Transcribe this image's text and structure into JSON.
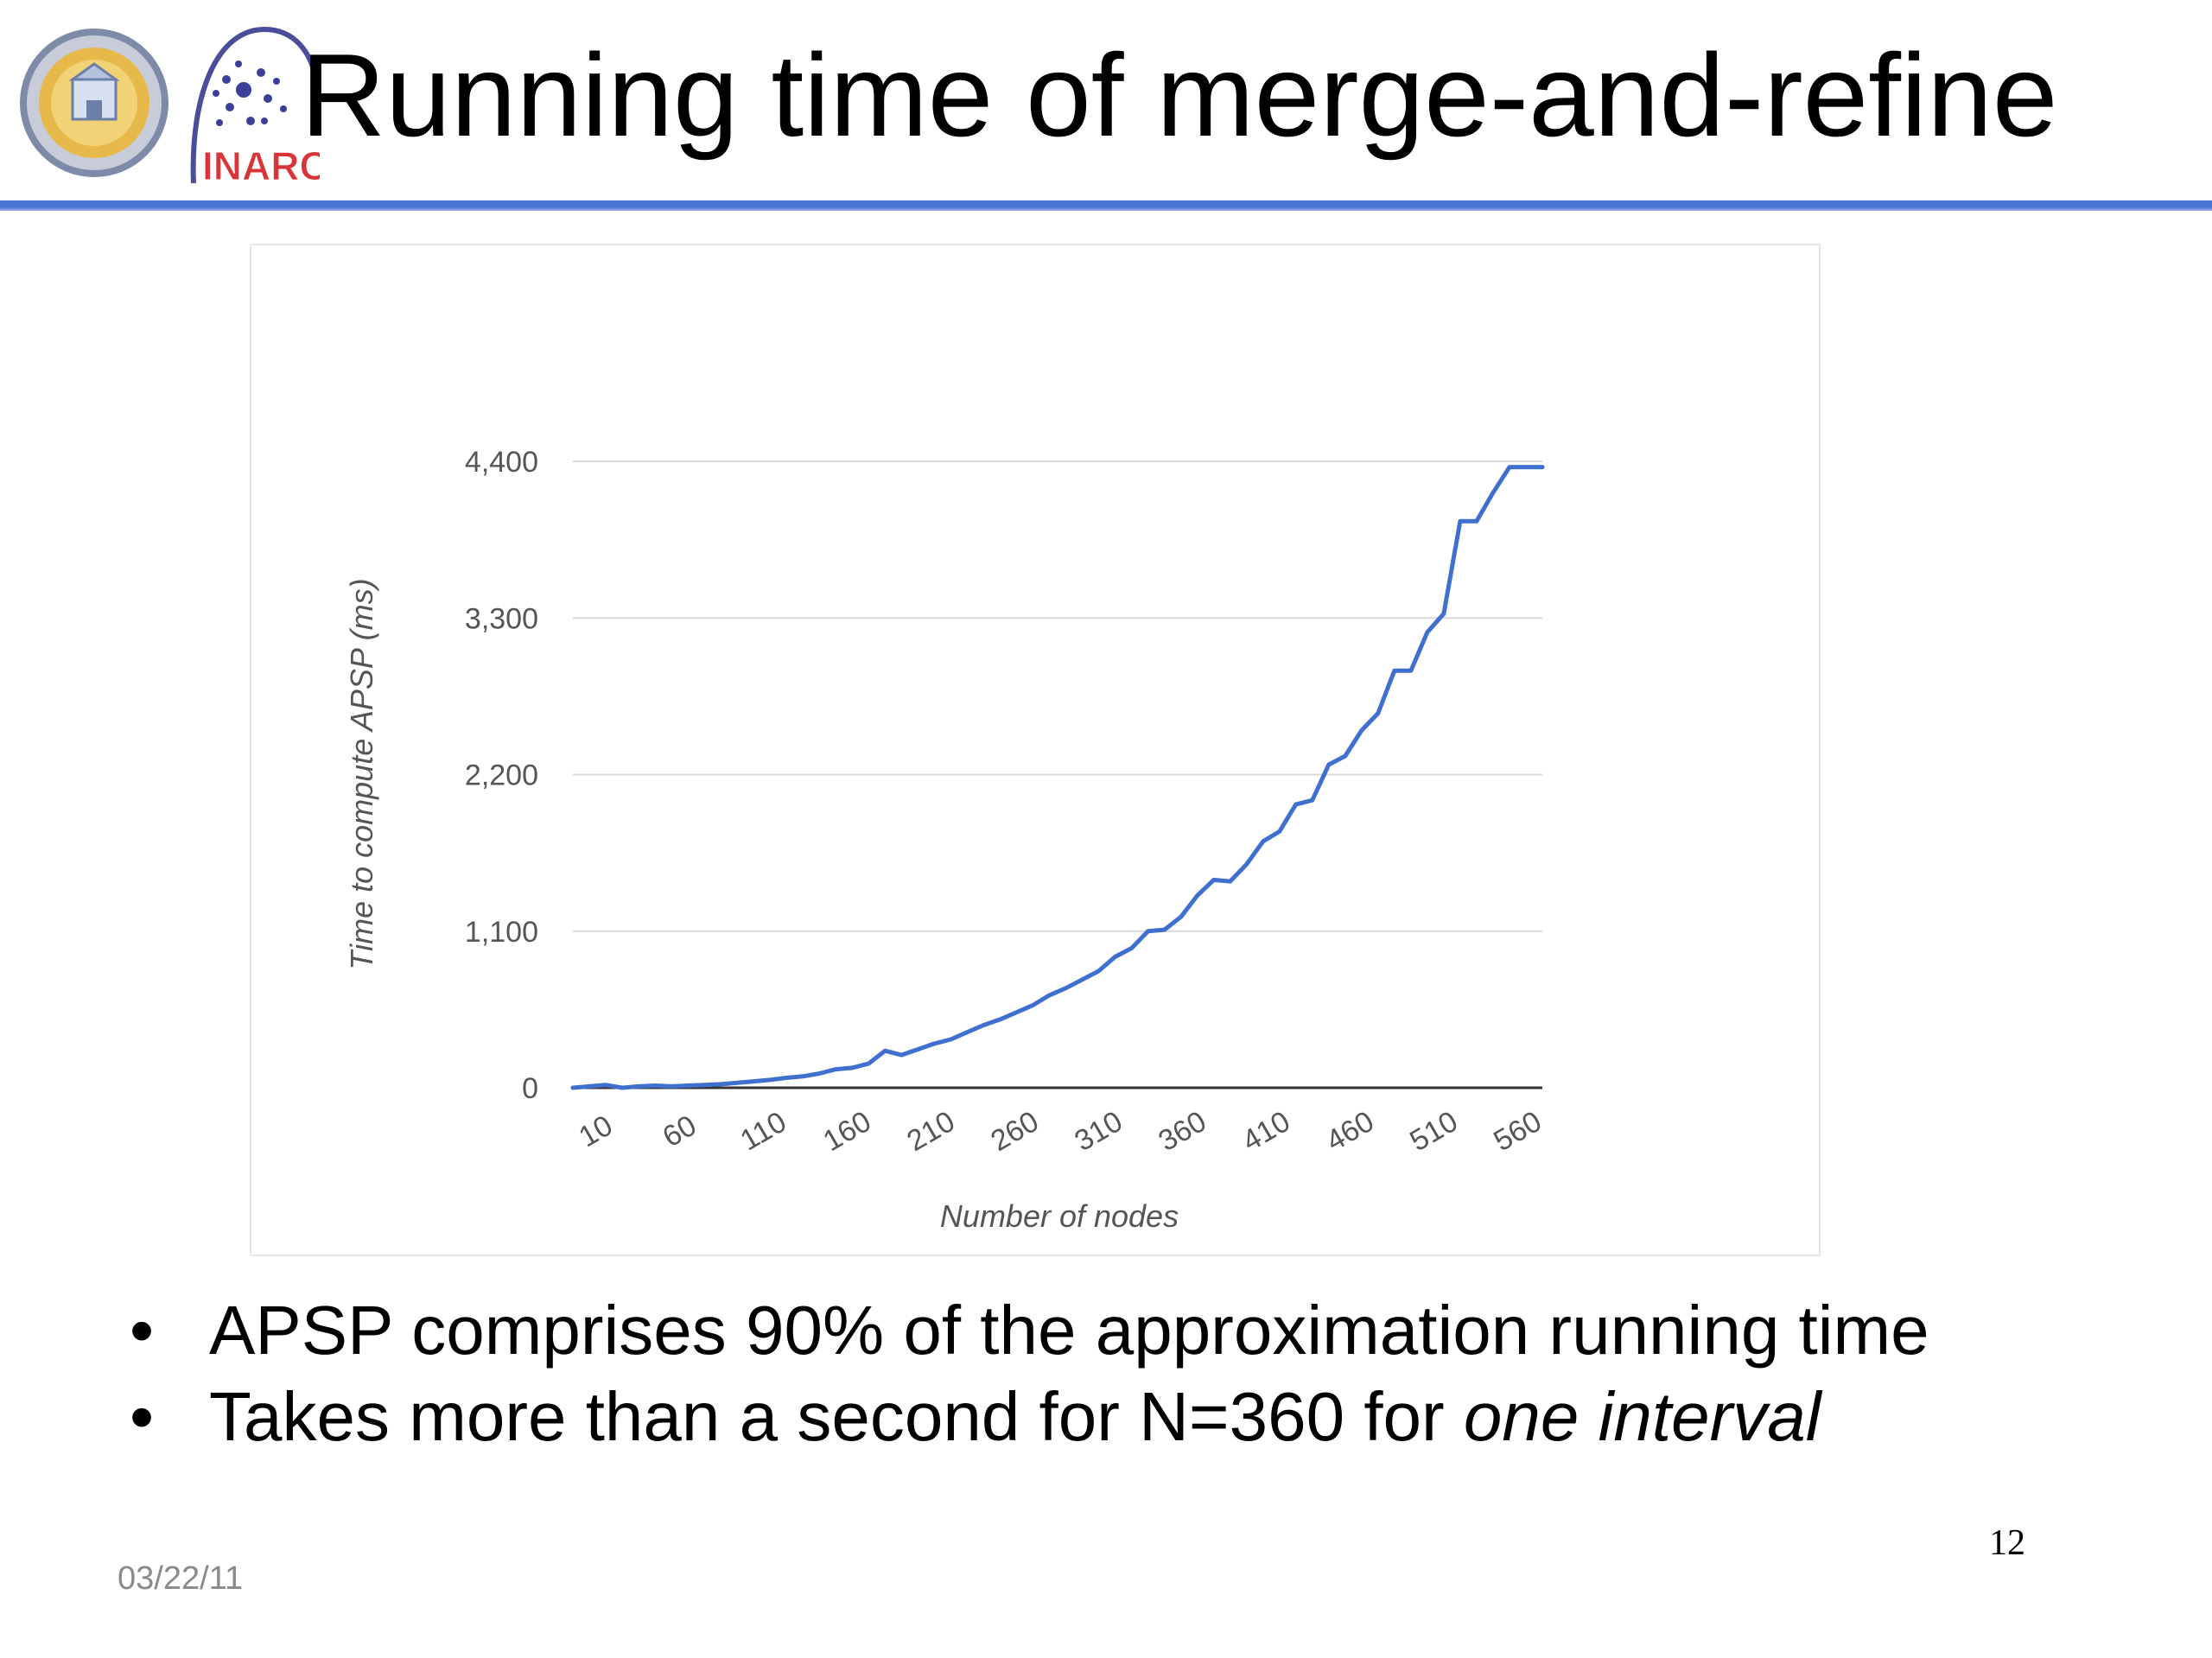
{
  "slide": {
    "title": "Running time of merge-and-refine",
    "bullets": [
      {
        "text": "APSP comprises 90% of the approximation running time",
        "italic_suffix": ""
      },
      {
        "text": "Takes more than a second for N=360 for ",
        "italic_suffix": "one interval"
      }
    ],
    "bullet_glyph": "•",
    "page_number": "12",
    "date": "03/22/11",
    "logos": {
      "left": "university-seal-icon",
      "right": "inarc-logo-icon",
      "right_text": "INARC"
    }
  },
  "colors": {
    "title_rule": "#4a73d6",
    "series": "#3f6fcf",
    "grid": "#d9d9d9",
    "axis_text": "#555555"
  },
  "chart_data": {
    "type": "line",
    "title": "",
    "xlabel": "Number of nodes",
    "ylabel": "Time to compute APSP (ms)",
    "ylim": [
      0,
      4400
    ],
    "xlim": [
      10,
      600
    ],
    "y_ticks": [
      0,
      1100,
      2200,
      3300,
      4400
    ],
    "y_tick_labels": [
      "0",
      "1,100",
      "2,200",
      "3,300",
      "4,400"
    ],
    "x_tick_labels": [
      "10",
      "60",
      "110",
      "160",
      "210",
      "260",
      "310",
      "360",
      "410",
      "460",
      "510",
      "560"
    ],
    "grid": true,
    "legend": "none",
    "series": [
      {
        "name": "",
        "x": [
          10,
          20,
          30,
          40,
          50,
          60,
          70,
          80,
          90,
          100,
          110,
          120,
          130,
          140,
          150,
          160,
          170,
          180,
          190,
          200,
          210,
          220,
          230,
          240,
          250,
          260,
          270,
          280,
          290,
          300,
          310,
          320,
          330,
          340,
          350,
          360,
          370,
          380,
          390,
          400,
          410,
          420,
          430,
          440,
          450,
          460,
          470,
          480,
          490,
          500,
          510,
          520,
          530,
          540,
          550,
          560,
          570,
          580,
          590,
          600
        ],
        "y": [
          0,
          10,
          20,
          0,
          10,
          15,
          10,
          15,
          20,
          25,
          35,
          45,
          55,
          70,
          80,
          100,
          130,
          140,
          170,
          260,
          230,
          270,
          310,
          340,
          390,
          440,
          480,
          530,
          580,
          650,
          700,
          760,
          820,
          920,
          980,
          1100,
          1110,
          1200,
          1350,
          1460,
          1450,
          1570,
          1730,
          1800,
          1990,
          2020,
          2270,
          2330,
          2510,
          2630,
          2930,
          2930,
          3200,
          3330,
          3980,
          3980,
          4180,
          4360,
          4360,
          4360
        ]
      }
    ]
  }
}
